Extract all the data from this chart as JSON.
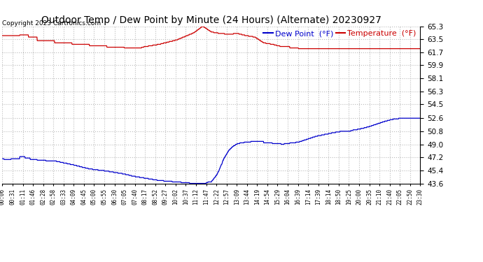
{
  "title": "Outdoor Temp / Dew Point by Minute (24 Hours) (Alternate) 20230927",
  "copyright": "Copyright 2023 Cartronics.com",
  "legend_dew": "Dew Point  (°F)",
  "legend_temp": "Temperature  (°F)",
  "temp_color": "#cc0000",
  "dew_color": "#0000cc",
  "background_color": "#ffffff",
  "plot_bg_color": "#ffffff",
  "grid_color": "#bbbbbb",
  "yticks": [
    43.6,
    45.4,
    47.2,
    49.0,
    50.8,
    52.6,
    54.5,
    56.3,
    58.1,
    59.9,
    61.7,
    63.5,
    65.3
  ],
  "ymin": 43.6,
  "ymax": 65.3,
  "xlabel_fontsize": 5.5,
  "ylabel_fontsize": 7.5,
  "title_fontsize": 10,
  "copyright_fontsize": 6.5,
  "legend_fontsize": 8,
  "xtick_labels": [
    "00:06",
    "00:31",
    "01:11",
    "01:46",
    "02:28",
    "02:58",
    "03:33",
    "04:09",
    "04:45",
    "05:00",
    "05:55",
    "06:30",
    "07:05",
    "07:40",
    "08:17",
    "08:52",
    "09:27",
    "10:02",
    "10:37",
    "11:12",
    "11:47",
    "12:22",
    "12:57",
    "13:09",
    "13:44",
    "14:19",
    "14:54",
    "15:29",
    "16:04",
    "16:39",
    "17:14",
    "17:39",
    "18:14",
    "18:50",
    "19:25",
    "20:00",
    "20:35",
    "21:10",
    "21:40",
    "22:05",
    "22:50",
    "23:30"
  ],
  "n_minutes": 1440
}
